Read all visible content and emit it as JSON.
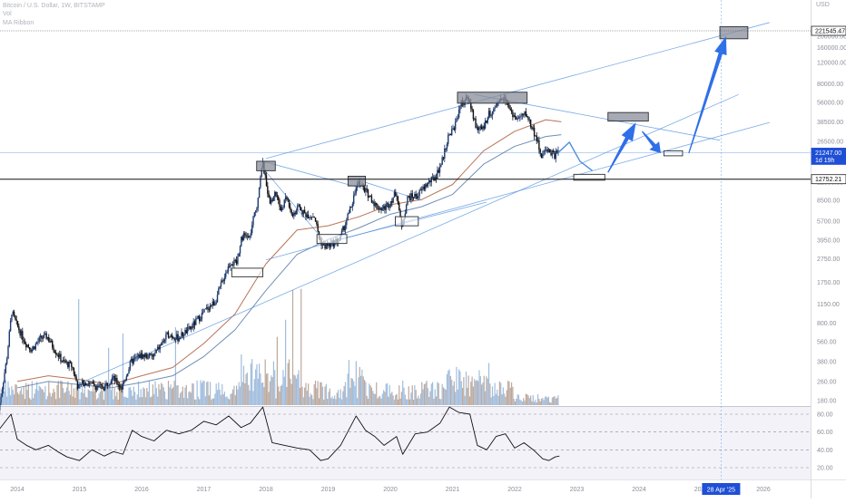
{
  "legend": {
    "symbol": "Bitcoin / U.S. Dollar, 1W, BITSTAMP",
    "vol_label": "Vol",
    "ma_label": "MA Ribbon"
  },
  "currency": "USD",
  "colors": {
    "candle_up": "#1e3a6e",
    "candle_down": "#111111",
    "vol_up": "#8fb1d8",
    "vol_down": "#b09a8c",
    "ma_fast": "#b87456",
    "ma_slow": "#6f8fb5",
    "trend": "#4d8fe0",
    "arrow": "#2f6fe8",
    "rsi": "#111111",
    "price_tag": "#1f4fd6"
  },
  "chart_data": {
    "type": "candlestick",
    "scale": "log",
    "price_ticks": [
      "200000.00",
      "160000.00",
      "120000.00",
      "80000.00",
      "56000.00",
      "38500.00",
      "26500.00",
      "12000.00",
      "8500.00",
      "5700.00",
      "3950.00",
      "2750.00",
      "1750.00",
      "1150.00",
      "800.00",
      "560.00",
      "380.00",
      "260.00",
      "180.00"
    ],
    "x_ticks": [
      "2014",
      "2015",
      "2016",
      "2017",
      "2018",
      "2019",
      "2020",
      "2021",
      "2022",
      "2023",
      "2024",
      "2025",
      "2026"
    ],
    "price_tags": [
      {
        "label": "221545.47",
        "value": 221545.47,
        "style": "outline"
      },
      {
        "label": "21247.00",
        "sub": "1d 19h",
        "value": 21247,
        "style": "filled"
      },
      {
        "label": "12752.21",
        "value": 12752.21,
        "style": "outline"
      }
    ],
    "date_tag": {
      "label": "28 Apr '25",
      "date": 2025.32
    },
    "price_path": [
      [
        2013.7,
        130
      ],
      [
        2013.85,
        400
      ],
      [
        2013.93,
        1000
      ],
      [
        2014.0,
        800
      ],
      [
        2014.08,
        650
      ],
      [
        2014.15,
        550
      ],
      [
        2014.25,
        480
      ],
      [
        2014.4,
        600
      ],
      [
        2014.5,
        620
      ],
      [
        2014.6,
        500
      ],
      [
        2014.75,
        380
      ],
      [
        2014.9,
        350
      ],
      [
        2015.0,
        230
      ],
      [
        2015.1,
        260
      ],
      [
        2015.25,
        240
      ],
      [
        2015.4,
        230
      ],
      [
        2015.55,
        280
      ],
      [
        2015.7,
        230
      ],
      [
        2015.85,
        380
      ],
      [
        2016.0,
        430
      ],
      [
        2016.2,
        420
      ],
      [
        2016.45,
        650
      ],
      [
        2016.6,
        600
      ],
      [
        2016.8,
        720
      ],
      [
        2017.0,
        960
      ],
      [
        2017.1,
        1100
      ],
      [
        2017.2,
        1200
      ],
      [
        2017.35,
        2000
      ],
      [
        2017.45,
        2600
      ],
      [
        2017.55,
        2500
      ],
      [
        2017.62,
        4200
      ],
      [
        2017.7,
        4300
      ],
      [
        2017.75,
        4000
      ],
      [
        2017.82,
        6000
      ],
      [
        2017.88,
        8000
      ],
      [
        2017.93,
        14000
      ],
      [
        2017.97,
        17000
      ],
      [
        2018.03,
        11000
      ],
      [
        2018.1,
        8000
      ],
      [
        2018.17,
        10000
      ],
      [
        2018.25,
        7000
      ],
      [
        2018.35,
        9000
      ],
      [
        2018.45,
        6500
      ],
      [
        2018.55,
        7500
      ],
      [
        2018.65,
        6500
      ],
      [
        2018.8,
        6300
      ],
      [
        2018.88,
        4000
      ],
      [
        2018.95,
        3500
      ],
      [
        2019.05,
        3600
      ],
      [
        2019.2,
        4000
      ],
      [
        2019.3,
        5500
      ],
      [
        2019.4,
        8000
      ],
      [
        2019.5,
        12000
      ],
      [
        2019.6,
        10500
      ],
      [
        2019.7,
        9000
      ],
      [
        2019.8,
        7500
      ],
      [
        2019.9,
        7200
      ],
      [
        2020.0,
        8000
      ],
      [
        2020.12,
        10000
      ],
      [
        2020.2,
        5000
      ],
      [
        2020.3,
        9000
      ],
      [
        2020.45,
        9300
      ],
      [
        2020.6,
        11500
      ],
      [
        2020.75,
        13500
      ],
      [
        2020.85,
        18000
      ],
      [
        2020.95,
        29000
      ],
      [
        2021.05,
        35000
      ],
      [
        2021.15,
        55000
      ],
      [
        2021.28,
        60000
      ],
      [
        2021.4,
        35000
      ],
      [
        2021.5,
        33000
      ],
      [
        2021.6,
        45000
      ],
      [
        2021.7,
        48000
      ],
      [
        2021.85,
        65000
      ],
      [
        2021.95,
        48000
      ],
      [
        2022.05,
        40000
      ],
      [
        2022.2,
        45000
      ],
      [
        2022.35,
        30000
      ],
      [
        2022.45,
        20000
      ],
      [
        2022.55,
        23000
      ],
      [
        2022.65,
        20000
      ],
      [
        2022.7,
        21247
      ]
    ],
    "projection": [
      [
        2022.7,
        21247
      ],
      [
        2022.88,
        26000
      ],
      [
        2023.05,
        18000
      ],
      [
        2023.25,
        15000
      ]
    ],
    "ma_fast": [
      [
        2014.0,
        260
      ],
      [
        2014.5,
        290
      ],
      [
        2015.0,
        270
      ],
      [
        2015.5,
        245
      ],
      [
        2016.0,
        290
      ],
      [
        2016.5,
        340
      ],
      [
        2017.0,
        540
      ],
      [
        2017.5,
        950
      ],
      [
        2018.0,
        2500
      ],
      [
        2018.5,
        4800
      ],
      [
        2019.0,
        5200
      ],
      [
        2019.5,
        6200
      ],
      [
        2020.0,
        7800
      ],
      [
        2020.5,
        8600
      ],
      [
        2021.0,
        11500
      ],
      [
        2021.5,
        22000
      ],
      [
        2022.0,
        32000
      ],
      [
        2022.5,
        40000
      ],
      [
        2022.75,
        38500
      ]
    ],
    "ma_slow": [
      [
        2014.0,
        230
      ],
      [
        2014.5,
        260
      ],
      [
        2015.0,
        245
      ],
      [
        2015.5,
        230
      ],
      [
        2016.0,
        255
      ],
      [
        2016.5,
        290
      ],
      [
        2017.0,
        420
      ],
      [
        2017.5,
        700
      ],
      [
        2018.0,
        1500
      ],
      [
        2018.5,
        3000
      ],
      [
        2019.0,
        4000
      ],
      [
        2019.5,
        5000
      ],
      [
        2020.0,
        6500
      ],
      [
        2020.5,
        7500
      ],
      [
        2021.0,
        9500
      ],
      [
        2021.5,
        17000
      ],
      [
        2022.0,
        24000
      ],
      [
        2022.5,
        29000
      ],
      [
        2022.75,
        30000
      ]
    ],
    "rsi_levels": [
      80,
      60,
      40,
      20
    ],
    "rsi_ticks": [
      "80.00",
      "60.00",
      "40.00",
      "20.00"
    ],
    "rsi_path": [
      [
        2013.7,
        62
      ],
      [
        2013.9,
        80
      ],
      [
        2014.0,
        52
      ],
      [
        2014.15,
        45
      ],
      [
        2014.3,
        40
      ],
      [
        2014.5,
        45
      ],
      [
        2014.65,
        38
      ],
      [
        2014.8,
        32
      ],
      [
        2015.0,
        28
      ],
      [
        2015.2,
        40
      ],
      [
        2015.4,
        33
      ],
      [
        2015.55,
        38
      ],
      [
        2015.7,
        35
      ],
      [
        2015.85,
        62
      ],
      [
        2016.0,
        55
      ],
      [
        2016.2,
        50
      ],
      [
        2016.4,
        62
      ],
      [
        2016.6,
        58
      ],
      [
        2016.8,
        62
      ],
      [
        2017.0,
        72
      ],
      [
        2017.2,
        68
      ],
      [
        2017.4,
        78
      ],
      [
        2017.6,
        65
      ],
      [
        2017.75,
        70
      ],
      [
        2017.95,
        88
      ],
      [
        2018.1,
        48
      ],
      [
        2018.3,
        45
      ],
      [
        2018.5,
        42
      ],
      [
        2018.7,
        40
      ],
      [
        2018.88,
        28
      ],
      [
        2019.0,
        30
      ],
      [
        2019.2,
        45
      ],
      [
        2019.45,
        78
      ],
      [
        2019.6,
        62
      ],
      [
        2019.75,
        55
      ],
      [
        2019.9,
        45
      ],
      [
        2020.1,
        55
      ],
      [
        2020.2,
        35
      ],
      [
        2020.4,
        58
      ],
      [
        2020.6,
        60
      ],
      [
        2020.8,
        70
      ],
      [
        2020.95,
        88
      ],
      [
        2021.1,
        82
      ],
      [
        2021.28,
        80
      ],
      [
        2021.4,
        45
      ],
      [
        2021.55,
        40
      ],
      [
        2021.7,
        55
      ],
      [
        2021.85,
        58
      ],
      [
        2022.0,
        42
      ],
      [
        2022.15,
        48
      ],
      [
        2022.3,
        40
      ],
      [
        2022.45,
        30
      ],
      [
        2022.55,
        28
      ],
      [
        2022.65,
        32
      ],
      [
        2022.72,
        33
      ]
    ],
    "annotation_boxes": [
      {
        "date1": 2017.45,
        "date2": 2017.95,
        "price1": 1950,
        "price2": 2300,
        "style": "outline"
      },
      {
        "date1": 2017.85,
        "date2": 2018.15,
        "price1": 18000,
        "price2": 15000,
        "style": "filled"
      },
      {
        "date1": 2018.82,
        "date2": 2019.3,
        "price1": 4400,
        "price2": 3700,
        "style": "outline"
      },
      {
        "date1": 2019.32,
        "date2": 2019.6,
        "price1": 13500,
        "price2": 11200,
        "style": "filled"
      },
      {
        "date1": 2020.08,
        "date2": 2020.45,
        "price1": 6200,
        "price2": 5200,
        "style": "outline"
      },
      {
        "date1": 2021.08,
        "date2": 2022.2,
        "price1": 68000,
        "price2": 55000,
        "style": "filled"
      },
      {
        "date1": 2022.95,
        "date2": 2023.45,
        "price1": 14000,
        "price2": 12500,
        "style": "outline"
      },
      {
        "date1": 2023.5,
        "date2": 2024.15,
        "price1": 46000,
        "price2": 39000,
        "style": "filled"
      },
      {
        "date1": 2024.4,
        "date2": 2024.7,
        "price1": 22000,
        "price2": 20000,
        "style": "outline"
      },
      {
        "date1": 2025.3,
        "date2": 2025.75,
        "price1": 240000,
        "price2": 190000,
        "style": "filled"
      }
    ],
    "trend_lines": [
      [
        [
          2018.0,
          19000
        ],
        [
          2026.1,
          260000
        ]
      ],
      [
        [
          2018.0,
          2700
        ],
        [
          2026.1,
          38000
        ]
      ],
      [
        [
          2015.0,
          250
        ],
        [
          2025.6,
          65000
        ]
      ],
      [
        [
          2017.95,
          18000
        ],
        [
          2019.6,
          10500
        ]
      ],
      [
        [
          2019.6,
          12000
        ],
        [
          2020.5,
          8500
        ]
      ],
      [
        [
          2021.35,
          65000
        ],
        [
          2025.3,
          27000
        ]
      ],
      [
        [
          2017.9,
          17000
        ],
        [
          2018.95,
          3800
        ]
      ],
      [
        [
          2019.1,
          3900
        ],
        [
          2021.55,
          8200
        ]
      ]
    ],
    "arrows": [
      [
        [
          2023.5,
          14500
        ],
        [
          2023.95,
          38000
        ]
      ],
      [
        [
          2024.05,
          32000
        ],
        [
          2024.35,
          21000
        ]
      ],
      [
        [
          2024.8,
          21000
        ],
        [
          2025.4,
          200000
        ]
      ]
    ]
  }
}
